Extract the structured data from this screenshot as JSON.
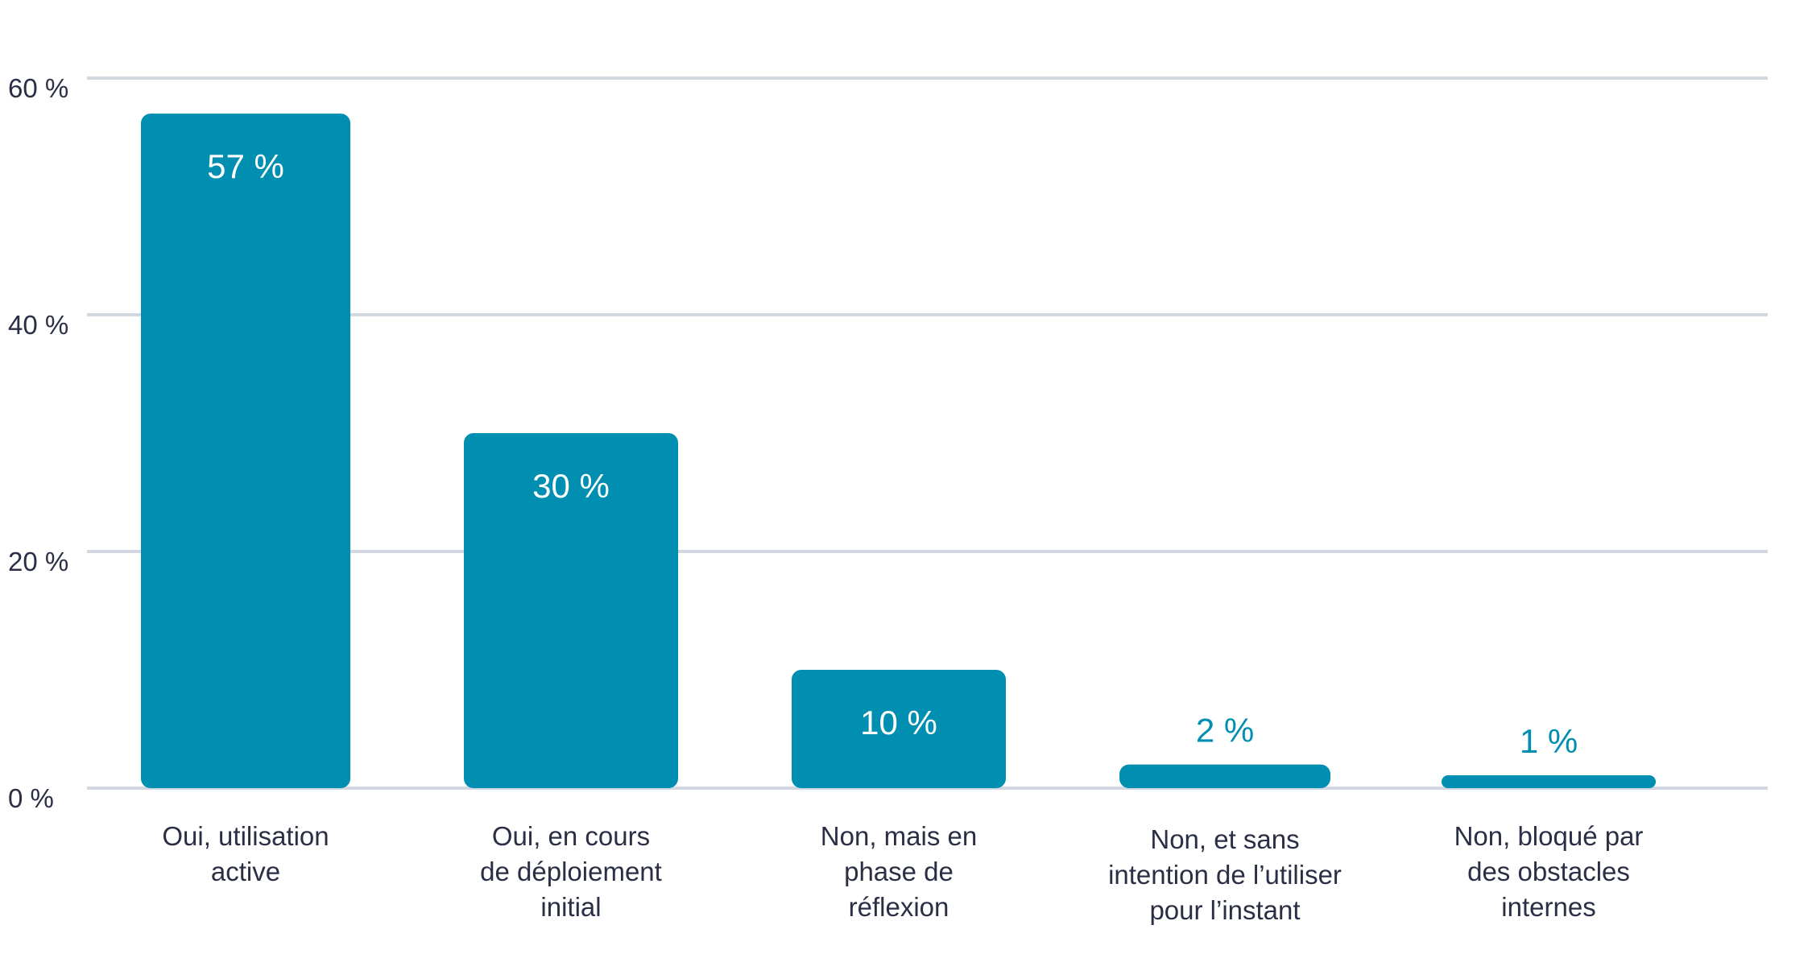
{
  "colors": {
    "bar": "#008fb0",
    "grid": "#d3d7e1",
    "axis_text": "#2b2f45",
    "label_inside": "#ffffff",
    "label_outside": "#008fb0"
  },
  "chart_data": {
    "type": "bar",
    "title": "",
    "xlabel": "",
    "ylabel": "",
    "categories": [
      [
        "Oui, utilisation",
        "active"
      ],
      [
        "Oui, en cours",
        "de déploiement",
        "initial"
      ],
      [
        "Non, mais en",
        "phase de",
        "réflexion"
      ],
      [
        "Non, et sans",
        "intention de l’utiliser",
        "pour l’instant"
      ],
      [
        "Non, bloqué par",
        "des obstacles",
        "internes"
      ]
    ],
    "values": [
      57,
      30,
      10,
      2,
      1
    ],
    "value_labels": [
      "57 %",
      "30 %",
      "10 %",
      "2 %",
      "1 %"
    ],
    "ylim": [
      0,
      60
    ],
    "yticks": [
      0,
      20,
      40,
      60
    ],
    "ytick_labels": [
      "0 %",
      "20 %",
      "40 %",
      "60 %"
    ],
    "grid": true
  }
}
